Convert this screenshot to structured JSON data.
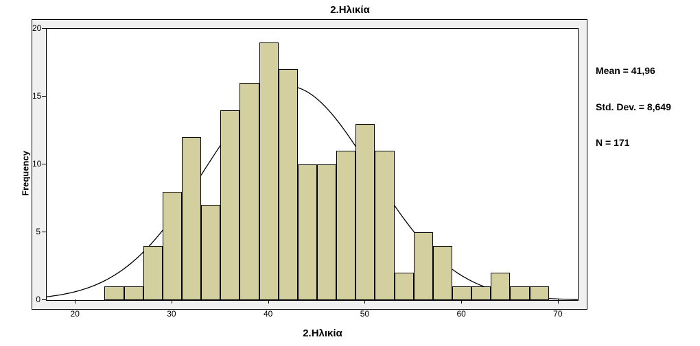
{
  "chart": {
    "type": "histogram",
    "title": "2.Ηλικία",
    "xlabel": "2.Ηλικία",
    "ylabel": "Frequency",
    "title_fontsize": 15,
    "label_fontsize": 15,
    "tick_fontsize": 12,
    "stats_fontsize": 14,
    "background_color": "#ffffff",
    "outer_panel_color": "#f0f0f0",
    "border_color": "#000000",
    "bar_color": "#d4cf9e",
    "bar_border_color": "#000000",
    "curve_color": "#000000",
    "curve_width": 1.3,
    "xlim": [
      17,
      72
    ],
    "ylim": [
      0,
      20
    ],
    "xticks": [
      20,
      30,
      40,
      50,
      60,
      70
    ],
    "yticks": [
      0,
      5,
      10,
      15,
      20
    ],
    "bin_width": 2,
    "bins": [
      {
        "start": 23,
        "count": 1
      },
      {
        "start": 25,
        "count": 1
      },
      {
        "start": 27,
        "count": 4
      },
      {
        "start": 29,
        "count": 8
      },
      {
        "start": 31,
        "count": 12
      },
      {
        "start": 33,
        "count": 7
      },
      {
        "start": 35,
        "count": 14
      },
      {
        "start": 37,
        "count": 16
      },
      {
        "start": 39,
        "count": 19
      },
      {
        "start": 41,
        "count": 17
      },
      {
        "start": 43,
        "count": 10
      },
      {
        "start": 45,
        "count": 10
      },
      {
        "start": 47,
        "count": 11
      },
      {
        "start": 49,
        "count": 13
      },
      {
        "start": 51,
        "count": 11
      },
      {
        "start": 53,
        "count": 2
      },
      {
        "start": 55,
        "count": 5
      },
      {
        "start": 57,
        "count": 4
      },
      {
        "start": 59,
        "count": 1
      },
      {
        "start": 61,
        "count": 1
      },
      {
        "start": 63,
        "count": 2
      },
      {
        "start": 65,
        "count": 1
      },
      {
        "start": 67,
        "count": 1
      }
    ],
    "normal_curve": {
      "mean": 41.96,
      "std_dev": 8.649,
      "n": 171,
      "bin_width": 2
    },
    "stats_text": {
      "mean_label": "Mean = 41,96",
      "std_label": "Std. Dev. = 8,649",
      "n_label": "N = 171"
    }
  }
}
